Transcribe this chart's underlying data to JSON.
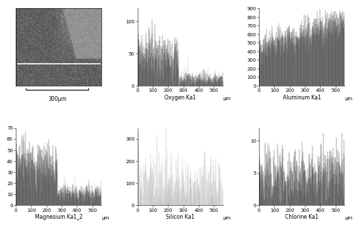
{
  "oxygen_label": "Oxygen Ka1",
  "aluminum_label": "Aluminum Ka1",
  "magnesium_label": "Magnesium Ka1_2",
  "silicon_label": "Silicon Ka1",
  "chlorine_label": "Chlorine Ka1",
  "scalebar_label": "300μm",
  "x_label": "μm",
  "oxygen_ylim": [
    0,
    120
  ],
  "oxygen_yticks": [
    0,
    50,
    100
  ],
  "aluminum_ylim": [
    0,
    900
  ],
  "aluminum_yticks": [
    0,
    100,
    200,
    300,
    400,
    500,
    600,
    700,
    800,
    900
  ],
  "magnesium_ylim": [
    0,
    70
  ],
  "magnesium_yticks": [
    0,
    10,
    20,
    30,
    40,
    50,
    60,
    70
  ],
  "silicon_ylim": [
    0,
    350
  ],
  "silicon_yticks": [
    0,
    100,
    200,
    300
  ],
  "chlorine_ylim": [
    0,
    12
  ],
  "chlorine_yticks": [
    0,
    5,
    10
  ],
  "x_max": 560,
  "xticks": [
    0,
    100,
    200,
    300,
    400,
    500
  ],
  "line_color_dark": "#404040",
  "line_color_light": "#aaaaaa",
  "line_color_silicon": "#bbbbbb"
}
